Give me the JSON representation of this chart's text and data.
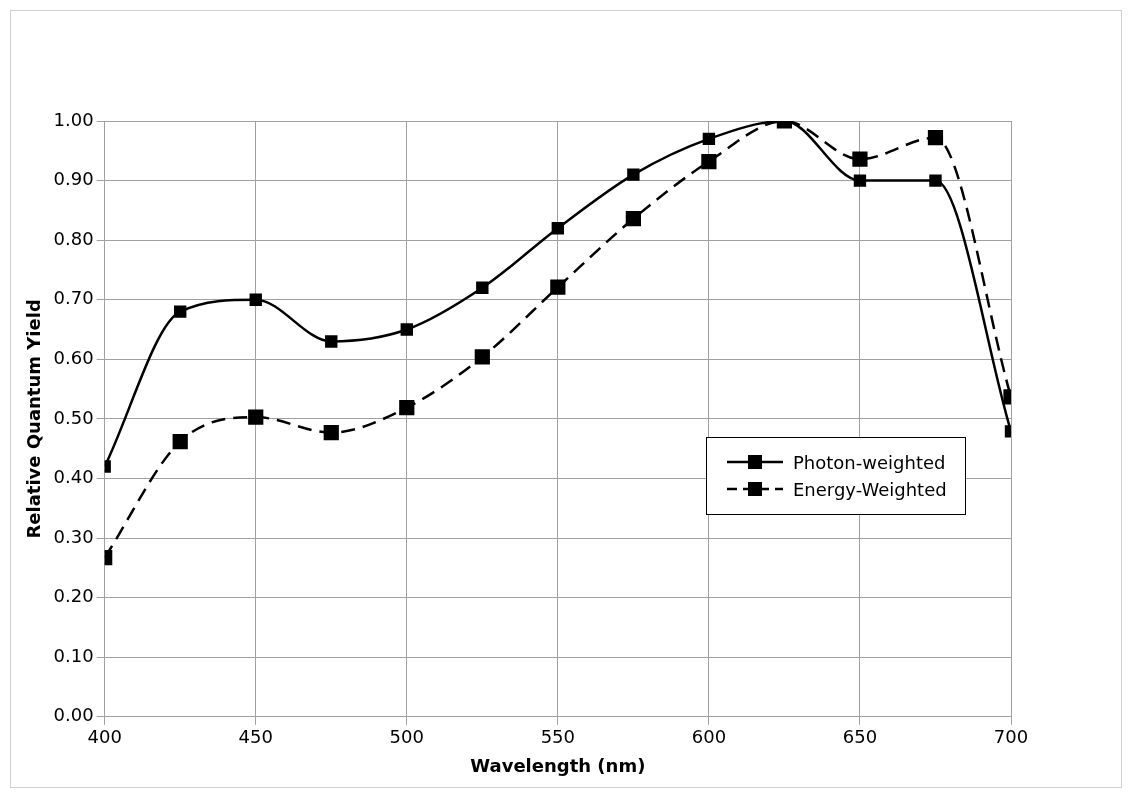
{
  "chart_data": {
    "type": "line",
    "xlabel": "Wavelength (nm)",
    "ylabel": "Relative Quantum Yield",
    "x": [
      400,
      425,
      450,
      475,
      500,
      525,
      550,
      575,
      600,
      625,
      650,
      675,
      700
    ],
    "series": [
      {
        "name": "Photon-weighted",
        "color": "#000000",
        "line_style": "solid",
        "values": [
          0.42,
          0.68,
          0.7,
          0.63,
          0.65,
          0.72,
          0.82,
          0.91,
          0.97,
          1.0,
          0.9,
          0.9,
          0.479
        ]
      },
      {
        "name": "Energy-Weighted",
        "color": "#000000",
        "line_style": "dashed",
        "values": [
          0.267,
          0.462,
          0.503,
          0.477,
          0.519,
          0.604,
          0.721,
          0.836,
          0.932,
          1.0,
          0.936,
          0.972,
          0.537
        ]
      }
    ],
    "xlim": [
      400,
      700
    ],
    "xticks": [
      400,
      450,
      500,
      550,
      600,
      650,
      700
    ],
    "ylim": [
      0,
      1
    ],
    "yticks": [
      {
        "value": 0,
        "label": "0.00"
      },
      {
        "value": 0.1,
        "label": "0.10"
      },
      {
        "value": 0.2,
        "label": "0.20"
      },
      {
        "value": 0.3,
        "label": "0.30"
      },
      {
        "value": 0.4,
        "label": "0.40"
      },
      {
        "value": 0.5,
        "label": "0.50"
      },
      {
        "value": 0.6,
        "label": "0.60"
      },
      {
        "value": 0.7,
        "label": "0.70"
      },
      {
        "value": 0.8,
        "label": "0.80"
      },
      {
        "value": 0.9,
        "label": "0.90"
      },
      {
        "value": 1,
        "label": "1.00"
      }
    ],
    "grid": true,
    "legend": "bottom right",
    "marker": "square"
  }
}
